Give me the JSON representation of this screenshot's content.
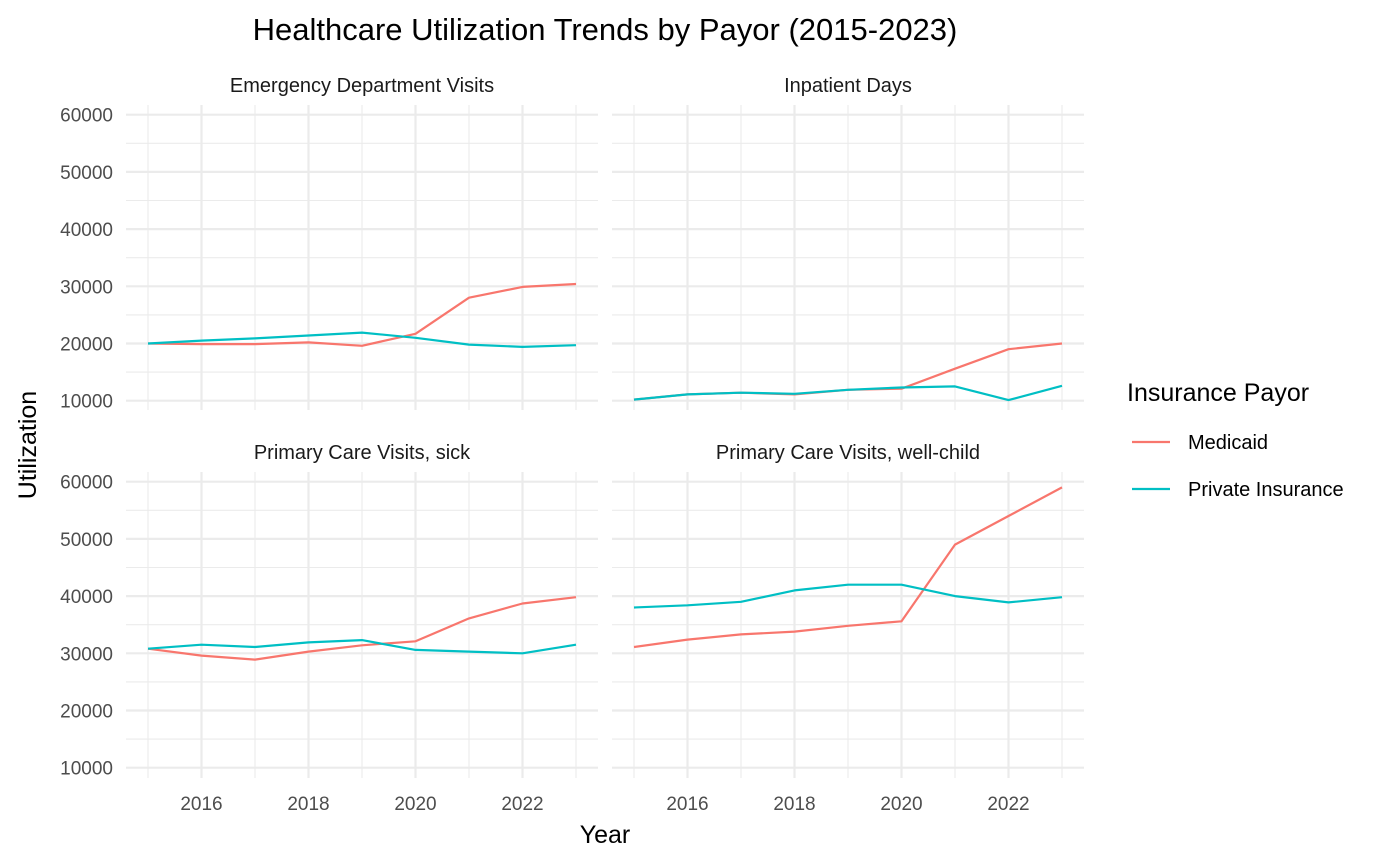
{
  "chart_data": {
    "type": "line",
    "title": "Healthcare Utilization Trends by Payor (2015-2023)",
    "xlabel": "Year",
    "ylabel": "Utilization",
    "x": [
      2015,
      2016,
      2017,
      2018,
      2019,
      2020,
      2021,
      2022,
      2023
    ],
    "xlim": [
      2015,
      2023
    ],
    "x_ticks": [
      2016,
      2018,
      2020,
      2022
    ],
    "ylim": [
      10000,
      60000
    ],
    "y_ticks": [
      10000,
      20000,
      30000,
      40000,
      50000,
      60000
    ],
    "grid": true,
    "legend": {
      "title": "Insurance Payor",
      "placement": "right",
      "entries": [
        {
          "name": "Medicaid",
          "color": "#F8766D"
        },
        {
          "name": "Private Insurance",
          "color": "#00BFC4"
        }
      ]
    },
    "panels": [
      {
        "title": "Emergency Department Visits",
        "series": [
          {
            "name": "Medicaid",
            "values": [
              20000,
              19900,
              19900,
              20200,
              19600,
              21700,
              28000,
              29900,
              30400
            ]
          },
          {
            "name": "Private Insurance",
            "values": [
              20000,
              20500,
              20900,
              21400,
              21900,
              21000,
              19800,
              19400,
              19700
            ]
          }
        ]
      },
      {
        "title": "Inpatient Days",
        "series": [
          {
            "name": "Medicaid",
            "values": [
              10200,
              11100,
              11400,
              11100,
              11900,
              12100,
              15600,
              19000,
              20000
            ]
          },
          {
            "name": "Private Insurance",
            "values": [
              10200,
              11100,
              11400,
              11200,
              11900,
              12300,
              12500,
              10100,
              12600
            ]
          }
        ]
      },
      {
        "title": "Primary Care Visits, sick",
        "series": [
          {
            "name": "Medicaid",
            "values": [
              30800,
              29600,
              28900,
              30300,
              31400,
              32100,
              36100,
              38700,
              39800
            ]
          },
          {
            "name": "Private Insurance",
            "values": [
              30800,
              31500,
              31100,
              31900,
              32300,
              30600,
              30300,
              30000,
              31500
            ]
          }
        ]
      },
      {
        "title": "Primary Care Visits, well-child",
        "series": [
          {
            "name": "Medicaid",
            "values": [
              31100,
              32400,
              33300,
              33800,
              34800,
              35600,
              49000,
              54000,
              59000
            ]
          },
          {
            "name": "Private Insurance",
            "values": [
              38000,
              38400,
              39000,
              41000,
              42000,
              42000,
              40000,
              38900,
              39800
            ]
          }
        ]
      }
    ]
  }
}
